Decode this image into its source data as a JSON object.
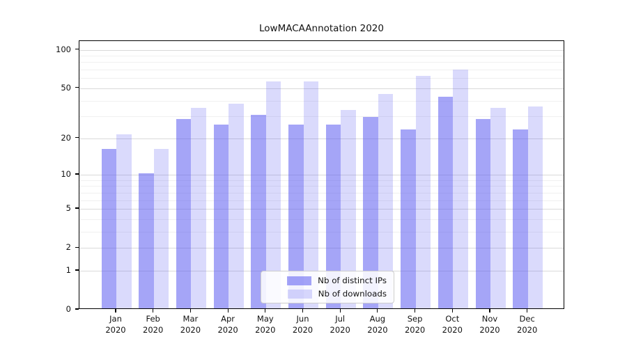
{
  "title": "LowMACAAnnotation 2020",
  "chart_data": {
    "type": "bar",
    "categories": [
      "Jan 2020",
      "Feb 2020",
      "Mar 2020",
      "Apr 2020",
      "May 2020",
      "Jun 2020",
      "Jul 2020",
      "Aug 2020",
      "Sep 2020",
      "Oct 2020",
      "Nov 2020",
      "Dec 2020"
    ],
    "months": [
      "Jan",
      "Feb",
      "Mar",
      "Apr",
      "May",
      "Jun",
      "Jul",
      "Aug",
      "Sep",
      "Oct",
      "Nov",
      "Dec"
    ],
    "year_label": "2020",
    "series": [
      {
        "name": "Nb of distinct IPs",
        "color": "#a6a6f6",
        "values": [
          16,
          10,
          28,
          25,
          30,
          25,
          25,
          29,
          23,
          42,
          28,
          23
        ]
      },
      {
        "name": "Nb of downloads",
        "color": "#dadafb",
        "values": [
          21,
          16,
          34,
          37,
          55,
          55,
          33,
          44,
          61,
          68,
          34,
          35
        ]
      }
    ],
    "title": "LowMACAAnnotation 2020",
    "xlabel": "",
    "ylabel": "",
    "yscale": "log1p",
    "yticks": [
      0,
      1,
      2,
      5,
      10,
      20,
      50,
      100
    ],
    "yticks_minor": [
      3,
      4,
      6,
      7,
      8,
      9,
      30,
      40,
      60,
      70,
      80,
      90
    ],
    "ylim": [
      0,
      115
    ],
    "grid": true,
    "legend_position": "lower center"
  },
  "legend": {
    "entries": [
      "Nb of distinct IPs",
      "Nb of downloads"
    ]
  },
  "colors": {
    "bar_distinct_ips": "#a6a6f6",
    "bar_downloads": "#dadafb",
    "grid_major": "#d9d9d9",
    "grid_minor": "#f0f0f0",
    "axis": "#000000",
    "text": "#111111"
  }
}
